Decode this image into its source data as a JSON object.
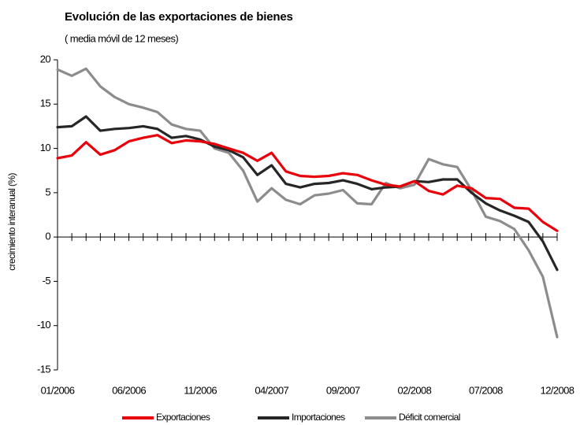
{
  "chart_data": {
    "type": "line",
    "title": "Evolución de las exportaciones de bienes",
    "subtitle": "( media móvil de 12 meses)",
    "y_label": "crecimiento interanual (%)",
    "categories": [
      "01/2006",
      null,
      null,
      null,
      null,
      "06/2006",
      null,
      null,
      null,
      null,
      "11/2006",
      null,
      null,
      null,
      null,
      "04/2007",
      null,
      null,
      null,
      null,
      "09/2007",
      null,
      null,
      null,
      null,
      "02/2008",
      null,
      null,
      null,
      null,
      "07/2008",
      null,
      null,
      null,
      null,
      "12/2008"
    ],
    "series": [
      {
        "name": "Exportaciones",
        "color": "#e8000b",
        "values": [
          8.9,
          9.2,
          10.7,
          9.3,
          9.8,
          10.8,
          11.2,
          11.5,
          10.6,
          10.9,
          10.8,
          10.5,
          10.0,
          9.5,
          8.6,
          9.5,
          7.4,
          6.9,
          6.8,
          6.9,
          7.2,
          7.0,
          6.4,
          5.9,
          5.7,
          6.3,
          5.2,
          4.8,
          5.8,
          5.5,
          4.4,
          4.3,
          3.3,
          3.2,
          1.7,
          0.7
        ]
      },
      {
        "name": "Importaciones",
        "color": "#262626",
        "values": [
          12.4,
          12.5,
          13.6,
          12.0,
          12.2,
          12.3,
          12.5,
          12.2,
          11.2,
          11.4,
          11.0,
          10.2,
          9.8,
          9.0,
          7.0,
          8.1,
          6.0,
          5.6,
          6.0,
          6.1,
          6.4,
          6.0,
          5.4,
          5.6,
          5.7,
          6.3,
          6.2,
          6.5,
          6.5,
          5.0,
          3.8,
          3.0,
          2.4,
          1.7,
          -0.5,
          -3.7
        ]
      },
      {
        "name": "Déficit comercial",
        "color": "#8c8c8c",
        "values": [
          18.9,
          18.2,
          19.0,
          17.0,
          15.8,
          15.0,
          14.6,
          14.1,
          12.7,
          12.2,
          12.0,
          10.0,
          9.5,
          7.5,
          4.0,
          5.5,
          4.2,
          3.7,
          4.7,
          4.9,
          5.3,
          3.8,
          3.7,
          6.1,
          5.5,
          5.9,
          8.8,
          8.2,
          7.9,
          5.3,
          2.3,
          1.8,
          0.9,
          -1.5,
          -4.5,
          -11.3
        ]
      }
    ],
    "ylim": [
      -15,
      20
    ],
    "yticks": [
      -15,
      -10,
      -5,
      0,
      5,
      10,
      15,
      20
    ],
    "grid": false,
    "legend": "bottom"
  }
}
